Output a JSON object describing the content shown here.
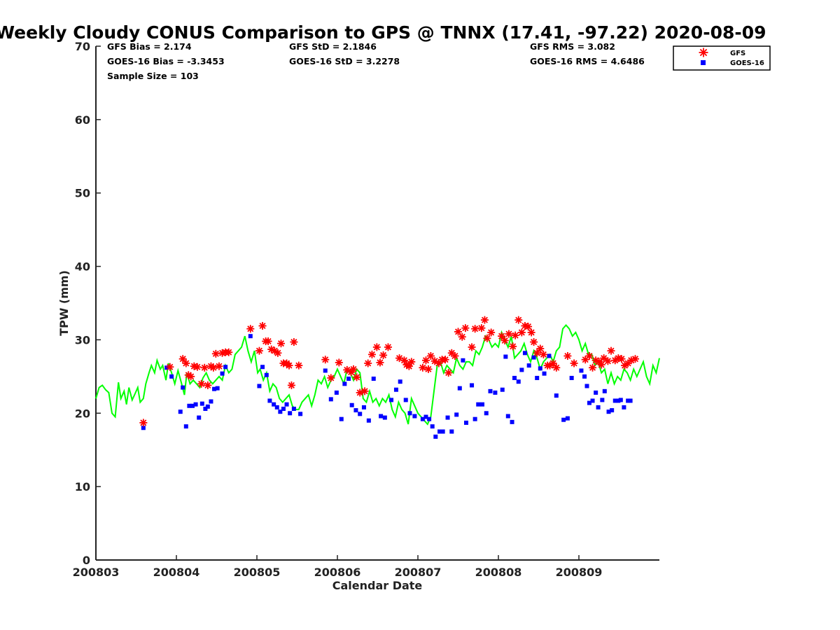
{
  "chart_data": {
    "type": "scatter",
    "title": "Weekly Cloudy CONUS Comparison to GPS @ TNNX (17.41, -97.22) 2020-08-09",
    "xlabel": "Calendar Date",
    "ylabel": "TPW (mm)",
    "ylim": [
      0,
      70
    ],
    "yticks": [
      0,
      10,
      20,
      30,
      40,
      50,
      60,
      70
    ],
    "xlim": [
      0,
      7
    ],
    "xtick_labels": [
      "200803",
      "200804",
      "200805",
      "200806",
      "200807",
      "200808",
      "200809"
    ],
    "stats": {
      "gfs_bias": "GFS Bias = 2.174",
      "goes_bias": "GOES-16 Bias = -3.3453",
      "sample_size": "Sample Size = 103",
      "gfs_std": "GFS StD = 2.1846",
      "goes_std": "GOES-16 StD = 3.2278",
      "gfs_rms": "GFS RMS = 3.082",
      "goes_rms": "GOES-16 RMS = 4.6486"
    },
    "legend": {
      "placement": "top-right",
      "entries": [
        "GFS",
        "GOES-16"
      ]
    },
    "colors": {
      "gfs": "#ff0000",
      "goes": "#0000ff",
      "gps": "#00ff00"
    },
    "series": [
      {
        "name": "GFS",
        "marker": "asterisk",
        "x": [
          0.59,
          0.92,
          1.08,
          1.12,
          1.15,
          1.18,
          1.22,
          1.26,
          1.31,
          1.35,
          1.39,
          1.43,
          1.46,
          1.49,
          1.53,
          1.57,
          1.61,
          1.65,
          1.92,
          2.03,
          2.07,
          2.11,
          2.14,
          2.18,
          2.22,
          2.26,
          2.3,
          2.33,
          2.37,
          2.4,
          2.43,
          2.46,
          2.52,
          2.85,
          2.92,
          3.02,
          3.12,
          3.17,
          3.2,
          3.24,
          3.28,
          3.34,
          3.38,
          3.43,
          3.49,
          3.53,
          3.57,
          3.63,
          3.77,
          3.83,
          3.86,
          3.89,
          3.92,
          4.06,
          4.1,
          4.13,
          4.16,
          4.21,
          4.26,
          4.3,
          4.34,
          4.38,
          4.42,
          4.46,
          4.5,
          4.55,
          4.59,
          4.67,
          4.71,
          4.79,
          4.83,
          4.86,
          4.91,
          5.04,
          5.08,
          5.13,
          5.18,
          5.21,
          5.25,
          5.29,
          5.33,
          5.37,
          5.41,
          5.44,
          5.48,
          5.52,
          5.56,
          5.61,
          5.64,
          5.68,
          5.72,
          5.86,
          5.94,
          6.08,
          6.13,
          6.17,
          6.21,
          6.25,
          6.28,
          6.31,
          6.36,
          6.4,
          6.45,
          6.49,
          6.53,
          6.57,
          6.61,
          6.65,
          6.7
        ],
        "y": [
          18.7,
          26.3,
          27.4,
          26.8,
          25.2,
          25.0,
          26.4,
          26.3,
          24.0,
          26.2,
          23.8,
          26.4,
          26.2,
          28.1,
          26.4,
          28.2,
          28.3,
          28.3,
          31.5,
          28.5,
          31.9,
          29.8,
          29.8,
          28.7,
          28.5,
          28.2,
          29.5,
          26.8,
          26.8,
          26.5,
          23.8,
          29.7,
          26.5,
          27.3,
          24.8,
          26.9,
          25.9,
          25.6,
          26.0,
          24.9,
          22.8,
          23.0,
          26.8,
          28.0,
          29.0,
          26.9,
          27.9,
          29.0,
          27.5,
          27.2,
          26.6,
          26.4,
          27.0,
          26.2,
          27.2,
          26.0,
          27.8,
          27.1,
          26.8,
          27.3,
          27.3,
          25.5,
          28.2,
          27.8,
          31.1,
          30.4,
          31.6,
          29.0,
          31.5,
          31.6,
          32.7,
          30.2,
          31.0,
          30.5,
          29.9,
          30.8,
          29.1,
          30.6,
          32.7,
          31.0,
          31.9,
          31.8,
          31.0,
          29.7,
          28.2,
          28.8,
          28.0,
          26.5,
          26.5,
          26.8,
          26.2,
          27.8,
          26.8,
          27.3,
          27.8,
          26.2,
          27.2,
          27.0,
          26.6,
          27.5,
          27.1,
          28.5,
          27.2,
          27.5,
          27.4,
          26.5,
          26.8,
          27.2,
          27.4
        ],
        "labels": null
      },
      {
        "name": "GOES-16",
        "marker": "square",
        "x": [
          0.59,
          0.88,
          0.94,
          1.05,
          1.08,
          1.12,
          1.16,
          1.2,
          1.24,
          1.28,
          1.32,
          1.36,
          1.39,
          1.43,
          1.47,
          1.51,
          1.57,
          1.61,
          1.92,
          2.03,
          2.07,
          2.12,
          2.16,
          2.21,
          2.25,
          2.29,
          2.33,
          2.37,
          2.41,
          2.46,
          2.54,
          2.85,
          2.92,
          2.99,
          3.05,
          3.09,
          3.14,
          3.18,
          3.23,
          3.28,
          3.33,
          3.39,
          3.45,
          3.54,
          3.59,
          3.67,
          3.73,
          3.78,
          3.85,
          3.9,
          3.96,
          4.06,
          4.1,
          4.14,
          4.18,
          4.22,
          4.27,
          4.31,
          4.37,
          4.42,
          4.48,
          4.52,
          4.56,
          4.6,
          4.67,
          4.71,
          4.75,
          4.8,
          4.85,
          4.9,
          4.96,
          5.05,
          5.09,
          5.12,
          5.17,
          5.2,
          5.25,
          5.29,
          5.33,
          5.38,
          5.44,
          5.48,
          5.52,
          5.57,
          5.63,
          5.72,
          5.81,
          5.86,
          5.91,
          6.03,
          6.07,
          6.1,
          6.13,
          6.17,
          6.21,
          6.24,
          6.29,
          6.32,
          6.37,
          6.41,
          6.45,
          6.49,
          6.52,
          6.56,
          6.61,
          6.64
        ],
        "y": [
          18.0,
          26.2,
          25.0,
          20.2,
          23.5,
          18.2,
          21.0,
          21.0,
          21.2,
          19.4,
          21.3,
          20.6,
          20.9,
          21.6,
          23.3,
          23.4,
          25.4,
          26.3,
          30.5,
          23.7,
          26.3,
          25.2,
          21.7,
          21.2,
          20.8,
          20.2,
          20.6,
          21.2,
          20.0,
          20.6,
          19.9,
          25.8,
          21.9,
          22.8,
          19.2,
          24.0,
          24.7,
          21.1,
          20.4,
          19.9,
          20.8,
          19.0,
          24.7,
          19.6,
          19.4,
          21.8,
          23.2,
          24.3,
          21.8,
          20.0,
          19.6,
          19.2,
          19.5,
          19.2,
          18.2,
          16.8,
          17.5,
          17.5,
          19.4,
          17.5,
          19.8,
          23.4,
          27.2,
          18.7,
          23.8,
          19.2,
          21.2,
          21.2,
          20.0,
          23.0,
          22.8,
          23.2,
          27.7,
          19.6,
          18.8,
          24.8,
          24.3,
          25.9,
          28.2,
          26.5,
          27.6,
          24.8,
          26.1,
          25.4,
          27.8,
          22.4,
          19.1,
          19.3,
          24.8,
          25.8,
          25.0,
          23.7,
          21.4,
          21.7,
          22.8,
          20.8,
          21.8,
          23.0,
          20.2,
          20.4,
          21.7,
          21.7,
          21.8,
          20.8,
          21.7,
          21.7
        ],
        "labels": null
      },
      {
        "name": "GPS",
        "marker": "line",
        "x": [
          0.0,
          0.04,
          0.08,
          0.12,
          0.16,
          0.2,
          0.24,
          0.28,
          0.31,
          0.35,
          0.38,
          0.41,
          0.45,
          0.48,
          0.52,
          0.55,
          0.59,
          0.62,
          0.66,
          0.69,
          0.73,
          0.76,
          0.8,
          0.83,
          0.87,
          0.9,
          0.94,
          0.98,
          1.02,
          1.06,
          1.1,
          1.13,
          1.17,
          1.21,
          1.25,
          1.29,
          1.33,
          1.37,
          1.41,
          1.45,
          1.49,
          1.53,
          1.57,
          1.61,
          1.65,
          1.69,
          1.73,
          1.77,
          1.81,
          1.85,
          1.89,
          1.93,
          1.97,
          2.01,
          2.04,
          2.08,
          2.12,
          2.16,
          2.2,
          2.24,
          2.28,
          2.32,
          2.36,
          2.4,
          2.44,
          2.48,
          2.52,
          2.56,
          2.6,
          2.64,
          2.68,
          2.72,
          2.76,
          2.8,
          2.84,
          2.88,
          2.92,
          2.96,
          3.0,
          3.04,
          3.08,
          3.12,
          3.16,
          3.2,
          3.24,
          3.28,
          3.32,
          3.36,
          3.4,
          3.44,
          3.48,
          3.52,
          3.56,
          3.6,
          3.64,
          3.68,
          3.72,
          3.76,
          3.8,
          3.84,
          3.88,
          3.92,
          3.96,
          4.0,
          4.04,
          4.08,
          4.12,
          4.16,
          4.2,
          4.24,
          4.28,
          4.32,
          4.36,
          4.4,
          4.44,
          4.48,
          4.52,
          4.56,
          4.6,
          4.64,
          4.68,
          4.72,
          4.76,
          4.8,
          4.84,
          4.88,
          4.92,
          4.96,
          5.0,
          5.04,
          5.08,
          5.12,
          5.16,
          5.2,
          5.24,
          5.28,
          5.32,
          5.36,
          5.4,
          5.44,
          5.48,
          5.52,
          5.56,
          5.6,
          5.64,
          5.68,
          5.72,
          5.76,
          5.8,
          5.84,
          5.88,
          5.92,
          5.96,
          6.0,
          6.04,
          6.08,
          6.12,
          6.16,
          6.2,
          6.24,
          6.28,
          6.32,
          6.36,
          6.4,
          6.44,
          6.48,
          6.52,
          6.56,
          6.6,
          6.64,
          6.68,
          6.72,
          6.76,
          6.8,
          6.84,
          6.88,
          6.92,
          6.96,
          7.0
        ],
        "y": [
          22.0,
          23.5,
          23.8,
          23.2,
          22.8,
          20.0,
          19.5,
          24.2,
          22.0,
          23.0,
          21.2,
          23.5,
          21.8,
          22.5,
          23.5,
          21.5,
          22.0,
          24.0,
          25.5,
          26.5,
          25.5,
          27.2,
          26.0,
          26.5,
          24.5,
          26.8,
          25.5,
          24.0,
          25.8,
          24.2,
          22.5,
          25.5,
          24.0,
          24.5,
          24.0,
          23.5,
          24.8,
          25.5,
          24.5,
          24.0,
          24.5,
          25.0,
          24.5,
          26.5,
          25.5,
          26.0,
          28.0,
          28.5,
          29.0,
          30.5,
          28.5,
          27.0,
          28.5,
          25.5,
          26.0,
          24.5,
          25.5,
          23.0,
          24.0,
          23.5,
          22.0,
          21.5,
          22.0,
          22.5,
          21.0,
          20.5,
          20.5,
          21.5,
          22.0,
          22.5,
          21.0,
          22.5,
          24.5,
          24.0,
          25.0,
          23.5,
          24.5,
          25.0,
          26.0,
          25.0,
          24.0,
          26.0,
          25.5,
          24.5,
          26.0,
          25.5,
          22.0,
          21.5,
          23.0,
          21.5,
          22.0,
          21.0,
          22.0,
          21.5,
          22.5,
          20.5,
          19.5,
          21.5,
          20.5,
          20.0,
          18.5,
          22.0,
          21.0,
          20.0,
          19.5,
          19.0,
          18.5,
          19.5,
          23.0,
          26.5,
          27.0,
          25.5,
          26.5,
          26.0,
          25.5,
          27.5,
          26.5,
          26.0,
          27.0,
          27.0,
          26.5,
          28.5,
          28.0,
          29.0,
          30.5,
          30.0,
          29.0,
          29.5,
          29.0,
          31.0,
          30.0,
          29.0,
          30.5,
          27.5,
          28.0,
          28.5,
          29.5,
          28.0,
          27.0,
          28.5,
          27.5,
          26.0,
          27.0,
          27.5,
          28.0,
          27.0,
          28.5,
          29.0,
          31.5,
          32.0,
          31.5,
          30.5,
          31.0,
          30.0,
          28.5,
          29.5,
          28.0,
          28.0,
          26.5,
          27.0,
          25.5,
          26.0,
          24.0,
          25.5,
          24.0,
          25.0,
          24.5,
          26.0,
          25.5,
          24.5,
          26.0,
          25.0,
          26.0,
          27.0,
          25.0,
          24.0,
          26.5,
          25.5,
          27.5
        ],
        "labels": null
      }
    ]
  }
}
